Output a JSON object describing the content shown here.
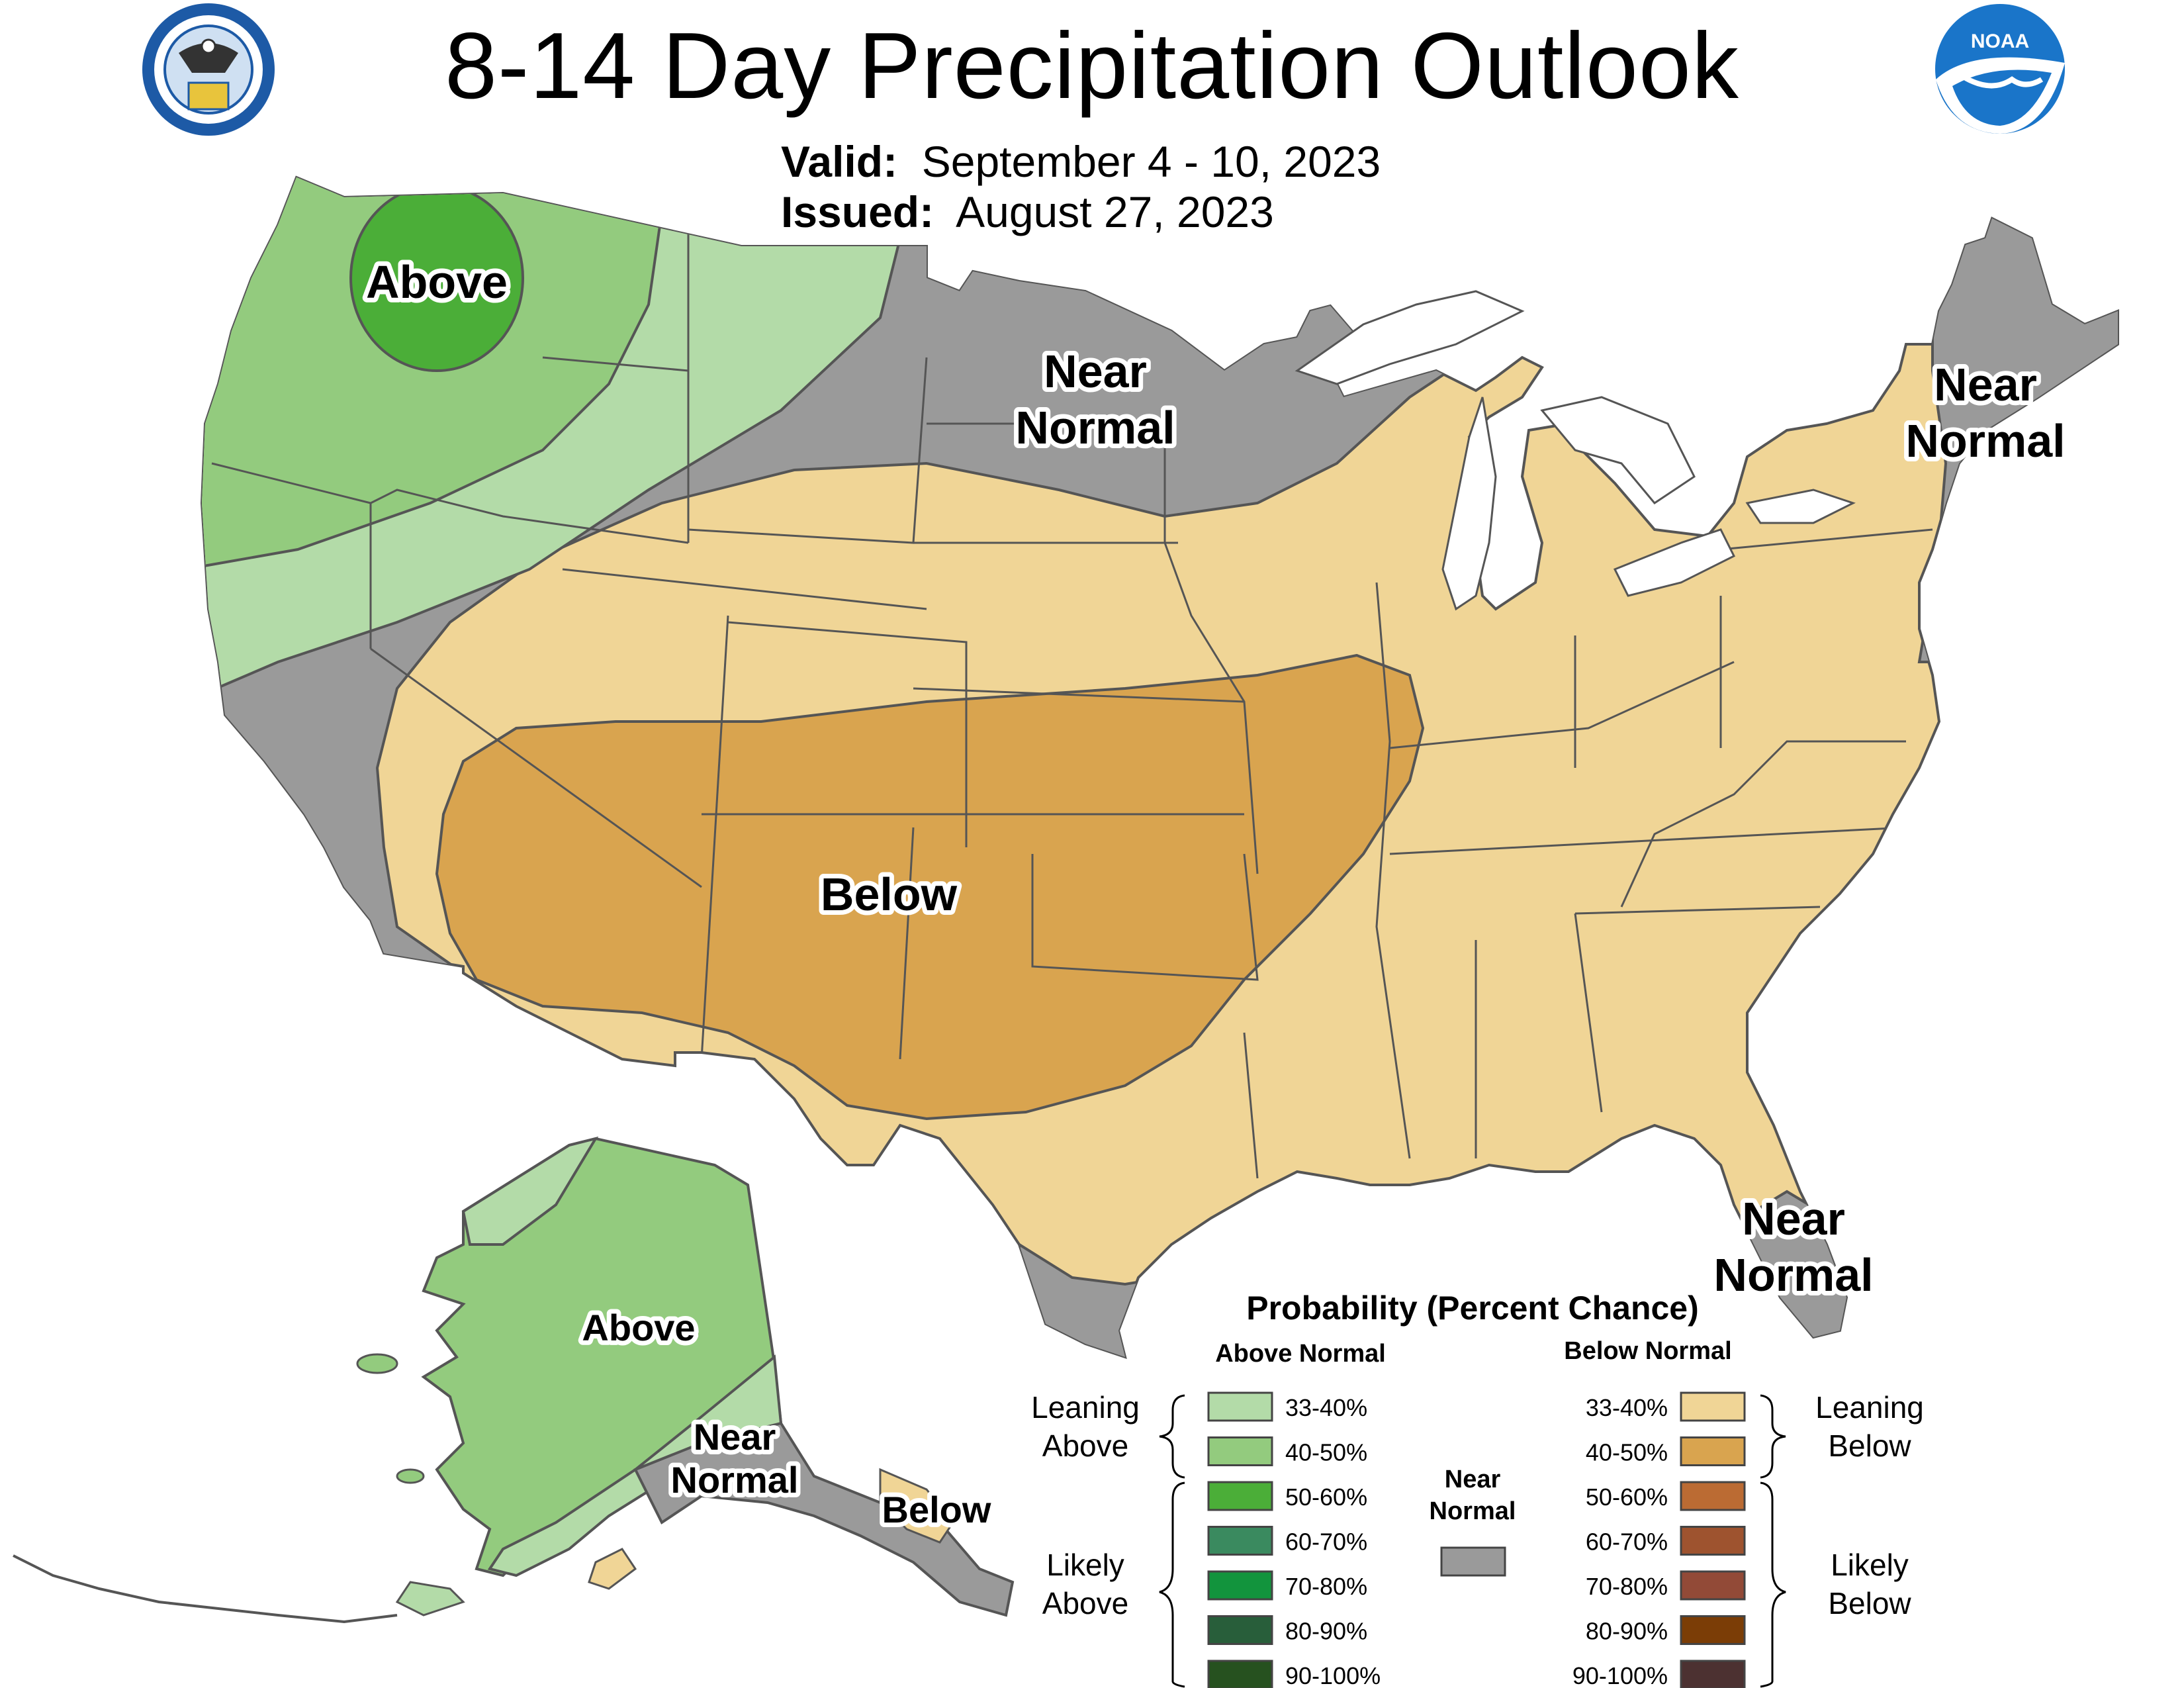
{
  "title": "8-14 Day Precipitation Outlook",
  "valid_label": "Valid:",
  "valid_value": "September 4 - 10, 2023",
  "issued_label": "Issued:",
  "issued_value": "August 27, 2023",
  "map_labels": {
    "above_nw": "Above",
    "near_normal_north_1": "Near",
    "near_normal_north_2": "Normal",
    "near_normal_ne_1": "Near",
    "near_normal_ne_2": "Normal",
    "below_sw": "Below",
    "near_normal_fl_1": "Near",
    "near_normal_fl_2": "Normal",
    "above_ak": "Above",
    "near_normal_ak_1": "Near",
    "near_normal_ak_2": "Normal",
    "below_ak": "Below"
  },
  "legend": {
    "title": "Probability (Percent Chance)",
    "above_header": "Above Normal",
    "below_header": "Below Normal",
    "near_header_1": "Near",
    "near_header_2": "Normal",
    "leaning_above_1": "Leaning",
    "leaning_above_2": "Above",
    "likely_above_1": "Likely",
    "likely_above_2": "Above",
    "leaning_below_1": "Leaning",
    "leaning_below_2": "Below",
    "likely_below_1": "Likely",
    "likely_below_2": "Below",
    "above_categories": [
      {
        "range": "33-40%",
        "color": "#b3dba8"
      },
      {
        "range": "40-50%",
        "color": "#93cb7e"
      },
      {
        "range": "50-60%",
        "color": "#4bae38"
      },
      {
        "range": "60-70%",
        "color": "#3a8a5f"
      },
      {
        "range": "70-80%",
        "color": "#12943d"
      },
      {
        "range": "80-90%",
        "color": "#285e3a"
      },
      {
        "range": "90-100%",
        "color": "#26511f"
      }
    ],
    "below_categories": [
      {
        "range": "33-40%",
        "color": "#f0d596"
      },
      {
        "range": "40-50%",
        "color": "#d9a44f"
      },
      {
        "range": "50-60%",
        "color": "#bb6b33"
      },
      {
        "range": "60-70%",
        "color": "#9e532f"
      },
      {
        "range": "70-80%",
        "color": "#924a37"
      },
      {
        "range": "80-90%",
        "color": "#7b3d06"
      },
      {
        "range": "90-100%",
        "color": "#4c3131"
      }
    ],
    "near_normal_color": "#9a9a9a"
  },
  "icons": [
    "department-of-commerce-seal-icon",
    "noaa-logo-icon"
  ]
}
